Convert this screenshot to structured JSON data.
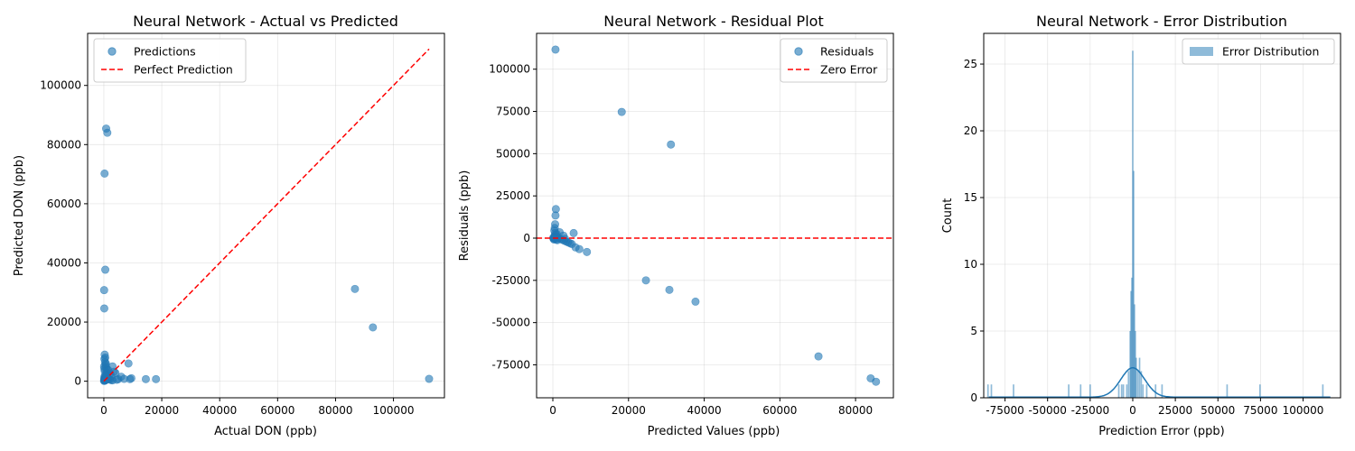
{
  "chart_data": [
    {
      "type": "scatter",
      "title": "Neural Network - Actual vs Predicted",
      "xlabel": "Actual DON (ppb)",
      "ylabel": "Predicted DON (ppb)",
      "xlim": [
        -5600,
        117600
      ],
      "ylim": [
        -5600,
        117600
      ],
      "xticks": [
        0,
        20000,
        40000,
        60000,
        80000,
        100000
      ],
      "yticks": [
        0,
        20000,
        40000,
        60000,
        80000,
        100000
      ],
      "grid": true,
      "legend": {
        "position": "top-left",
        "entries": [
          "Predictions",
          "Perfect Prediction"
        ]
      },
      "series": [
        {
          "name": "Predictions",
          "kind": "scatter",
          "color": "#1f77b4",
          "x": [
            100,
            200,
            150,
            300,
            400,
            500,
            600,
            700,
            800,
            900,
            1000,
            1200,
            1500,
            1800,
            2000,
            2500,
            3000,
            3500,
            4000,
            4500,
            5000,
            6000,
            7000,
            8500,
            9000,
            9500,
            14500,
            18000,
            300,
            200,
            100,
            400,
            600,
            800,
            1000,
            1500,
            2000,
            2500,
            3000,
            200,
            300,
            500,
            700,
            100,
            150,
            86700,
            92900,
            112300,
            500,
            1200,
            800,
            200,
            100,
            300,
            400,
            250,
            500,
            800,
            1200
          ],
          "y": [
            200,
            500,
            800,
            1000,
            1200,
            300,
            600,
            900,
            1500,
            2000,
            2500,
            3000,
            1000,
            800,
            600,
            400,
            300,
            3200,
            2800,
            500,
            700,
            1500,
            800,
            6000,
            700,
            1000,
            700,
            700,
            3500,
            4200,
            5000,
            6500,
            5500,
            4800,
            4000,
            3800,
            2500,
            1800,
            5000,
            7500,
            9000,
            8000,
            6000,
            30800,
            24600,
            31200,
            18200,
            800,
            37700,
            84000,
            85400,
            1500,
            100,
            600,
            200,
            70200,
            2200,
            1600,
            700
          ]
        },
        {
          "name": "Perfect Prediction",
          "kind": "line",
          "color": "#ff0000",
          "x": [
            0,
            112300
          ],
          "y": [
            0,
            112300
          ]
        }
      ]
    },
    {
      "type": "scatter",
      "title": "Neural Network - Residual Plot",
      "xlabel": "Predicted Values (ppb)",
      "ylabel": "Residuals (ppb)",
      "xlim": [
        -4300,
        90000
      ],
      "ylim": [
        -94500,
        121200
      ],
      "xticks": [
        0,
        20000,
        40000,
        60000,
        80000
      ],
      "yticks": [
        -75000,
        -50000,
        -25000,
        0,
        25000,
        50000,
        75000,
        100000
      ],
      "grid": true,
      "legend": {
        "position": "top-right",
        "entries": [
          "Residuals",
          "Zero Error"
        ]
      },
      "series": [
        {
          "name": "Residuals",
          "kind": "scatter",
          "color": "#1f77b4",
          "x": [
            700,
            18200,
            31200,
            800,
            700,
            600,
            500,
            400,
            600,
            800,
            1000,
            1200,
            1500,
            2000,
            2500,
            3000,
            3500,
            4000,
            4500,
            5000,
            6000,
            7000,
            9000,
            24600,
            30800,
            37700,
            70200,
            84000,
            85400,
            300,
            200,
            500,
            1000,
            1800,
            2800,
            3200,
            5500,
            1200,
            900,
            400,
            600,
            100,
            250
          ],
          "y": [
            111600,
            74700,
            55400,
            17200,
            13400,
            8200,
            6000,
            4500,
            3000,
            2000,
            1000,
            500,
            0,
            -500,
            -1000,
            -1500,
            -2000,
            -2500,
            -3000,
            -3500,
            -5500,
            -6500,
            -8200,
            -25000,
            -30600,
            -37600,
            -70000,
            -83000,
            -85000,
            -800,
            -400,
            1500,
            2500,
            3500,
            1500,
            -300,
            3000,
            -1200,
            -900,
            500,
            -200,
            200,
            100
          ]
        },
        {
          "name": "Zero Error",
          "kind": "hline",
          "color": "#ff0000",
          "y": 0
        }
      ]
    },
    {
      "type": "histogram",
      "title": "Neural Network - Error Distribution",
      "xlabel": "Prediction Error (ppb)",
      "ylabel": "Count",
      "xlim": [
        -87500,
        122000
      ],
      "ylim": [
        0,
        27.3
      ],
      "xticks": [
        -75000,
        -50000,
        -25000,
        0,
        25000,
        50000,
        75000,
        100000
      ],
      "yticks": [
        0,
        5,
        10,
        15,
        20,
        25
      ],
      "grid": true,
      "legend": {
        "position": "top-right",
        "entries": [
          "Error Distribution"
        ]
      },
      "series": [
        {
          "name": "Error Distribution",
          "kind": "bars",
          "color": "#1f77b4",
          "bars": [
            {
              "x": -85000,
              "count": 1
            },
            {
              "x": -83000,
              "count": 1
            },
            {
              "x": -70000,
              "count": 1
            },
            {
              "x": -37600,
              "count": 1
            },
            {
              "x": -30600,
              "count": 1
            },
            {
              "x": -25000,
              "count": 1
            },
            {
              "x": -8200,
              "count": 1
            },
            {
              "x": -6500,
              "count": 1
            },
            {
              "x": -5500,
              "count": 1
            },
            {
              "x": -3500,
              "count": 1
            },
            {
              "x": -2500,
              "count": 2
            },
            {
              "x": -1500,
              "count": 5
            },
            {
              "x": -1000,
              "count": 8
            },
            {
              "x": -500,
              "count": 9
            },
            {
              "x": 0,
              "count": 26
            },
            {
              "x": 500,
              "count": 17
            },
            {
              "x": 1000,
              "count": 7
            },
            {
              "x": 1500,
              "count": 5
            },
            {
              "x": 2000,
              "count": 3
            },
            {
              "x": 3000,
              "count": 2
            },
            {
              "x": 4000,
              "count": 3
            },
            {
              "x": 5000,
              "count": 2
            },
            {
              "x": 6000,
              "count": 1
            },
            {
              "x": 8200,
              "count": 1
            },
            {
              "x": 13400,
              "count": 1
            },
            {
              "x": 17200,
              "count": 1
            },
            {
              "x": 55400,
              "count": 1
            },
            {
              "x": 74700,
              "count": 1
            },
            {
              "x": 111600,
              "count": 1
            }
          ]
        },
        {
          "name": "KDE",
          "kind": "kde",
          "color": "#1f77b4",
          "peak_x": 0,
          "peak_count": 2.2,
          "bandwidth": 7000
        }
      ]
    }
  ]
}
